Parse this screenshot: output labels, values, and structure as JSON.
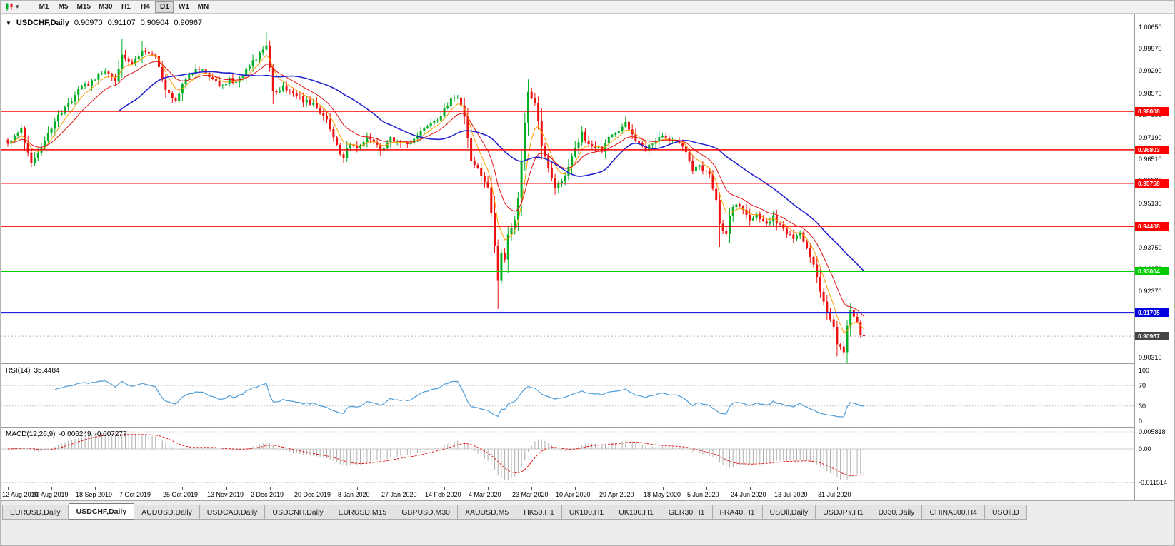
{
  "icons": {
    "collapse": "▼",
    "dropdown": "▾"
  },
  "toolbar": {
    "timeframes": [
      {
        "label": "M1",
        "active": false
      },
      {
        "label": "M5",
        "active": false
      },
      {
        "label": "M15",
        "active": false
      },
      {
        "label": "M30",
        "active": false
      },
      {
        "label": "H1",
        "active": false
      },
      {
        "label": "H4",
        "active": false
      },
      {
        "label": "D1",
        "active": true
      },
      {
        "label": "W1",
        "active": false
      },
      {
        "label": "MN",
        "active": false
      }
    ]
  },
  "chart_header": {
    "symbol": "USDCHF,Daily",
    "open": "0.90970",
    "high": "0.91107",
    "low": "0.90904",
    "close": "0.90967"
  },
  "price_axis": [
    {
      "text": "1.00650",
      "value": 1.0065
    },
    {
      "text": "0.99970",
      "value": 0.9997
    },
    {
      "text": "0.99290",
      "value": 0.9929
    },
    {
      "text": "0.98570",
      "value": 0.9857
    },
    {
      "text": "0.97890",
      "value": 0.9789
    },
    {
      "text": "0.97190",
      "value": 0.9719
    },
    {
      "text": "0.96510",
      "value": 0.9651
    },
    {
      "text": "0.95830",
      "value": 0.9583
    },
    {
      "text": "0.95130",
      "value": 0.9513
    },
    {
      "text": "0.94450",
      "value": 0.9445
    },
    {
      "text": "0.93750",
      "value": 0.9375
    },
    {
      "text": "0.93070",
      "value": 0.9307
    },
    {
      "text": "0.92370",
      "value": 0.9237
    },
    {
      "text": "0.91690",
      "value": 0.9169
    },
    {
      "text": "0.91010",
      "value": 0.9101
    },
    {
      "text": "0.90310",
      "value": 0.9031
    }
  ],
  "levels": [
    {
      "price": "0.98008",
      "value": 0.98008,
      "color": "#FF0000",
      "width": 1.5
    },
    {
      "price": "0.96803",
      "value": 0.96803,
      "color": "#FF0000",
      "width": 1.5
    },
    {
      "price": "0.95758",
      "value": 0.95758,
      "color": "#FF0000",
      "width": 1.5
    },
    {
      "price": "0.94408",
      "value": 0.94408,
      "color": "#FF0000",
      "width": 1.5
    },
    {
      "price": "0.93004",
      "value": 0.93004,
      "color": "#00CC00",
      "width": 2
    },
    {
      "price": "0.91705",
      "value": 0.91705,
      "color": "#0000E0",
      "width": 2
    }
  ],
  "current_price": {
    "label": "0.90967",
    "value": 0.90967,
    "badge_color": "#454545"
  },
  "indicators": {
    "rsi": {
      "name": "RSI(14)",
      "value": "35.4484",
      "axis": [
        {
          "text": "100",
          "value": 100
        },
        {
          "text": "70",
          "value": 70
        },
        {
          "text": "30",
          "value": 30
        },
        {
          "text": "0",
          "value": 0
        }
      ]
    },
    "macd": {
      "name": "MACD(12,26,9)",
      "main": "-0.006249",
      "signal": "-0.007277",
      "axis": [
        {
          "text": "0.005818",
          "value": 0.005818
        },
        {
          "text": "0.00",
          "value": 0
        },
        {
          "text": "-0.011514",
          "value": -0.011514
        }
      ]
    }
  },
  "time_axis": [
    "12 Aug 2019",
    "30 Aug 2019",
    "18 Sep 2019",
    "7 Oct 2019",
    "25 Oct 2019",
    "13 Nov 2019",
    "2 Dec 2019",
    "20 Dec 2019",
    "8 Jan 2020",
    "27 Jan 2020",
    "14 Feb 2020",
    "4 Mar 2020",
    "23 Mar 2020",
    "10 Apr 2020",
    "29 Apr 2020",
    "18 May 2020",
    "5 Jun 2020",
    "24 Jun 2020",
    "13 Jul 2020",
    "31 Jul 2020"
  ],
  "tabs": [
    {
      "label": "EURUSD,Daily",
      "active": false
    },
    {
      "label": "USDCHF,Daily",
      "active": true
    },
    {
      "label": "AUDUSD,Daily",
      "active": false
    },
    {
      "label": "USDCAD,Daily",
      "active": false
    },
    {
      "label": "USDCNH,Daily",
      "active": false
    },
    {
      "label": "EURUSD,M15",
      "active": false
    },
    {
      "label": "GBPUSD,M30",
      "active": false
    },
    {
      "label": "XAUUSD,M5",
      "active": false
    },
    {
      "label": "HK50,H1",
      "active": false
    },
    {
      "label": "UK100,H1",
      "active": false
    },
    {
      "label": "UK100,H1",
      "active": false
    },
    {
      "label": "GER30,H1",
      "active": false
    },
    {
      "label": "FRA40,H1",
      "active": false
    },
    {
      "label": "USOil,Daily",
      "active": false
    },
    {
      "label": "USDJPY,H1",
      "active": false
    },
    {
      "label": "DJ30,Daily",
      "active": false
    },
    {
      "label": "CHINA300,H4",
      "active": false
    },
    {
      "label": "USOil,D",
      "active": false
    }
  ],
  "colors": {
    "candle_up": "#00AE26",
    "candle_down": "#EE1111",
    "ma_fast": "#FF9C00",
    "ma_mid": "#E01010",
    "ma_slow": "#2323CC",
    "rsi_line": "#4E9CD8",
    "macd_hist": "#ADADAD",
    "macd_signal": "#E01010"
  },
  "chart_data": {
    "type": "candlestick",
    "symbol": "USDCHF",
    "timeframe": "Daily",
    "last_candle_ohlc": [
      0.9097,
      0.91107,
      0.90904,
      0.90967
    ],
    "y_range": [
      0.9012,
      1.0107
    ],
    "num_candles": 256,
    "last_close": 0.90967,
    "moving_averages": [
      {
        "type": "ema",
        "period": 6
      },
      {
        "type": "ema",
        "period": 14
      },
      {
        "type": "sma",
        "period": 34
      }
    ],
    "rsi_period": 14,
    "macd_params": [
      12,
      26,
      9
    ],
    "anchors": [
      [
        0,
        0.97
      ],
      [
        4,
        0.9745
      ],
      [
        7,
        0.963
      ],
      [
        11,
        0.971
      ],
      [
        14,
        0.977
      ],
      [
        18,
        0.982
      ],
      [
        21,
        0.987
      ],
      [
        26,
        0.99
      ],
      [
        29,
        0.993
      ],
      [
        32,
        0.989
      ],
      [
        34,
        0.9985
      ],
      [
        37,
        0.995
      ],
      [
        40,
        0.9995
      ],
      [
        44,
        0.9975
      ],
      [
        47,
        0.9865
      ],
      [
        50,
        0.984
      ],
      [
        53,
        0.99
      ],
      [
        56,
        0.9935
      ],
      [
        60,
        0.9915
      ],
      [
        63,
        0.9875
      ],
      [
        66,
        0.99
      ],
      [
        68,
        0.989
      ],
      [
        71,
        0.993
      ],
      [
        74,
        0.997
      ],
      [
        77,
        1.001
      ],
      [
        79,
        0.987
      ],
      [
        80,
        0.9855
      ],
      [
        82,
        0.988
      ],
      [
        85,
        0.9855
      ],
      [
        88,
        0.9835
      ],
      [
        91,
        0.982
      ],
      [
        95,
        0.978
      ],
      [
        98,
        0.969
      ],
      [
        100,
        0.9655
      ],
      [
        102,
        0.97
      ],
      [
        105,
        0.969
      ],
      [
        107,
        0.9715
      ],
      [
        111,
        0.968
      ],
      [
        114,
        0.972
      ],
      [
        117,
        0.97
      ],
      [
        120,
        0.9695
      ],
      [
        122,
        0.973
      ],
      [
        126,
        0.976
      ],
      [
        129,
        0.979
      ],
      [
        132,
        0.984
      ],
      [
        134,
        0.985
      ],
      [
        136,
        0.978
      ],
      [
        138,
        0.965
      ],
      [
        140,
        0.962
      ],
      [
        143,
        0.956
      ],
      [
        144,
        0.948
      ],
      [
        146,
        0.927
      ],
      [
        147,
        0.935
      ],
      [
        148,
        0.933
      ],
      [
        149,
        0.942
      ],
      [
        151,
        0.946
      ],
      [
        152,
        0.953
      ],
      [
        153,
        0.965
      ],
      [
        154,
        0.976
      ],
      [
        155,
        0.986
      ],
      [
        157,
        0.983
      ],
      [
        159,
        0.97
      ],
      [
        161,
        0.962
      ],
      [
        163,
        0.956
      ],
      [
        166,
        0.96
      ],
      [
        169,
        0.968
      ],
      [
        171,
        0.973
      ],
      [
        173,
        0.97
      ],
      [
        177,
        0.968
      ],
      [
        180,
        0.973
      ],
      [
        184,
        0.976
      ],
      [
        187,
        0.971
      ],
      [
        190,
        0.9685
      ],
      [
        194,
        0.972
      ],
      [
        196,
        0.9715
      ],
      [
        200,
        0.97
      ],
      [
        202,
        0.967
      ],
      [
        204,
        0.962
      ],
      [
        206,
        0.963
      ],
      [
        209,
        0.96
      ],
      [
        211,
        0.952
      ],
      [
        212,
        0.9445
      ],
      [
        214,
        0.942
      ],
      [
        215,
        0.948
      ],
      [
        217,
        0.951
      ],
      [
        219,
        0.9495
      ],
      [
        221,
        0.946
      ],
      [
        223,
        0.948
      ],
      [
        226,
        0.945
      ],
      [
        228,
        0.947
      ],
      [
        230,
        0.944
      ],
      [
        232,
        0.942
      ],
      [
        234,
        0.94
      ],
      [
        236,
        0.942
      ],
      [
        238,
        0.938
      ],
      [
        240,
        0.932
      ],
      [
        242,
        0.924
      ],
      [
        243,
        0.92
      ],
      [
        245,
        0.915
      ],
      [
        246,
        0.912
      ],
      [
        247,
        0.907
      ],
      [
        249,
        0.905
      ],
      [
        250,
        0.913
      ],
      [
        251,
        0.9175
      ],
      [
        253,
        0.914
      ],
      [
        254,
        0.9105
      ],
      [
        255,
        0.9097
      ]
    ],
    "wick_overrides": [
      {
        "i": 34,
        "high": 1.0027
      },
      {
        "i": 40,
        "high": 1.0021
      },
      {
        "i": 77,
        "high": 1.005
      },
      {
        "i": 146,
        "low": 0.9182
      },
      {
        "i": 155,
        "high": 0.9901
      },
      {
        "i": 212,
        "low": 0.9376
      },
      {
        "i": 249,
        "low": 0.9035
      }
    ]
  }
}
